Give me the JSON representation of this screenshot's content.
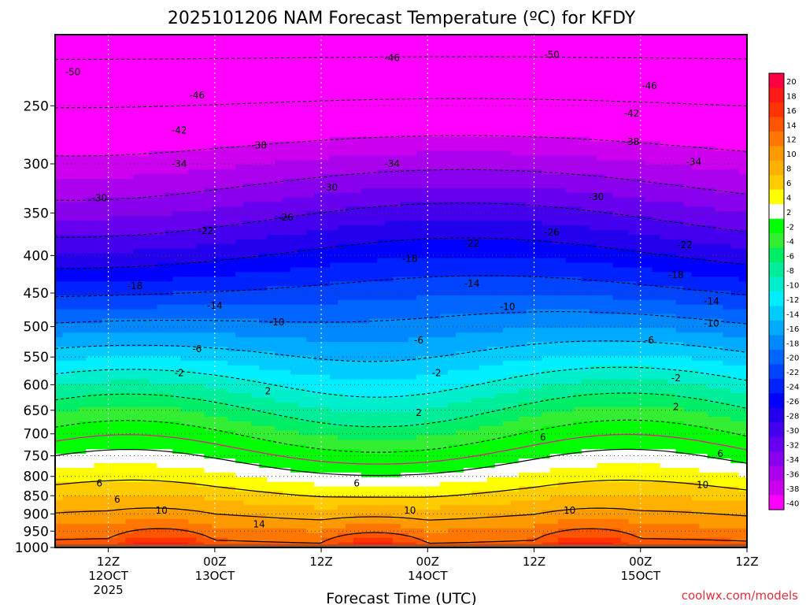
{
  "chart_data": {
    "type": "heatmap",
    "title": "2025101206 NAM Forecast Temperature (ºC) for KFDY",
    "xlabel": "Forecast Time (UTC)",
    "ylabel": "",
    "y_scale": "pressure (hPa), inverted",
    "ylim": [
      1000,
      200
    ],
    "grid": true,
    "credit": "coolwx.com/models",
    "y_ticks": [
      {
        "value": 250,
        "label": "250"
      },
      {
        "value": 300,
        "label": "300"
      },
      {
        "value": 350,
        "label": "350"
      },
      {
        "value": 400,
        "label": "400"
      },
      {
        "value": 450,
        "label": "450"
      },
      {
        "value": 500,
        "label": "500"
      },
      {
        "value": 550,
        "label": "550"
      },
      {
        "value": 600,
        "label": "600"
      },
      {
        "value": 650,
        "label": "650"
      },
      {
        "value": 700,
        "label": "700"
      },
      {
        "value": 750,
        "label": "750"
      },
      {
        "value": 800,
        "label": "800"
      },
      {
        "value": 850,
        "label": "850"
      },
      {
        "value": 900,
        "label": "900"
      },
      {
        "value": 950,
        "label": "950"
      },
      {
        "value": 1000,
        "label": "1000"
      }
    ],
    "x_range_hours": [
      6,
      84
    ],
    "x_ticks": [
      {
        "hour": 12,
        "lines": [
          "12Z",
          "12OCT",
          "2025"
        ]
      },
      {
        "hour": 24,
        "lines": [
          "00Z",
          "13OCT"
        ]
      },
      {
        "hour": 36,
        "lines": [
          "12Z"
        ]
      },
      {
        "hour": 48,
        "lines": [
          "00Z",
          "14OCT"
        ]
      },
      {
        "hour": 60,
        "lines": [
          "12Z"
        ]
      },
      {
        "hour": 72,
        "lines": [
          "00Z",
          "15OCT"
        ]
      },
      {
        "hour": 84,
        "lines": [
          "12Z"
        ]
      }
    ],
    "colorbar": {
      "labels": [
        "20",
        "18",
        "16",
        "14",
        "12",
        "10",
        "8",
        "6",
        "4",
        "2",
        "-2",
        "-4",
        "-6",
        "-8",
        "-10",
        "-12",
        "-14",
        "-16",
        "-18",
        "-20",
        "-22",
        "-24",
        "-26",
        "-28",
        "-30",
        "-32",
        "-34",
        "-36",
        "-38",
        "-40"
      ],
      "colors": [
        "#ff0040",
        "#ff1a1a",
        "#ff3300",
        "#ff5500",
        "#ff7700",
        "#ff9900",
        "#ffb000",
        "#ffcc00",
        "#ffff00",
        "#ffffff",
        "#00ff00",
        "#33ee33",
        "#00ee66",
        "#00ee99",
        "#00eecc",
        "#00eeff",
        "#00ccff",
        "#00aaff",
        "#0088ff",
        "#0066ff",
        "#0044ff",
        "#0022ff",
        "#0000ff",
        "#2200ee",
        "#4400ee",
        "#6600ee",
        "#8800ee",
        "#aa00ee",
        "#cc00ee",
        "#ff00ff"
      ]
    },
    "ground_color": "#a0522d",
    "surface_temp_c": [
      {
        "hour": 6,
        "t": 12
      },
      {
        "hour": 12,
        "t": 10
      },
      {
        "hour": 18,
        "t": 16
      },
      {
        "hour": 21,
        "t": 19
      },
      {
        "hour": 24,
        "t": 15
      },
      {
        "hour": 30,
        "t": 12
      },
      {
        "hour": 36,
        "t": 12
      },
      {
        "hour": 42,
        "t": 17
      },
      {
        "hour": 45,
        "t": 19
      },
      {
        "hour": 48,
        "t": 16
      },
      {
        "hour": 54,
        "t": 13
      },
      {
        "hour": 60,
        "t": 12
      },
      {
        "hour": 66,
        "t": 17
      },
      {
        "hour": 69,
        "t": 19
      },
      {
        "hour": 72,
        "t": 16
      },
      {
        "hour": 78,
        "t": 14
      },
      {
        "hour": 84,
        "t": 13
      }
    ],
    "contour_labels": [
      {
        "text": "-50",
        "hour": 8,
        "p": 225
      },
      {
        "text": "-46",
        "hour": 22,
        "p": 242
      },
      {
        "text": "-46",
        "hour": 44,
        "p": 215
      },
      {
        "text": "-50",
        "hour": 62,
        "p": 213
      },
      {
        "text": "-46",
        "hour": 73,
        "p": 235
      },
      {
        "text": "-42",
        "hour": 20,
        "p": 270
      },
      {
        "text": "-42",
        "hour": 71,
        "p": 256
      },
      {
        "text": "-38",
        "hour": 29,
        "p": 283
      },
      {
        "text": "-38",
        "hour": 71,
        "p": 280
      },
      {
        "text": "-34",
        "hour": 20,
        "p": 300
      },
      {
        "text": "-34",
        "hour": 44,
        "p": 300
      },
      {
        "text": "-34",
        "hour": 78,
        "p": 298
      },
      {
        "text": "-30",
        "hour": 11,
        "p": 334
      },
      {
        "text": "-30",
        "hour": 37,
        "p": 323
      },
      {
        "text": "-30",
        "hour": 67,
        "p": 333
      },
      {
        "text": "-26",
        "hour": 32,
        "p": 355
      },
      {
        "text": "-26",
        "hour": 62,
        "p": 372
      },
      {
        "text": "-22",
        "hour": 23,
        "p": 370
      },
      {
        "text": "-22",
        "hour": 53,
        "p": 385
      },
      {
        "text": "-22",
        "hour": 77,
        "p": 387
      },
      {
        "text": "-18",
        "hour": 15,
        "p": 440
      },
      {
        "text": "-18",
        "hour": 46,
        "p": 404
      },
      {
        "text": "-18",
        "hour": 76,
        "p": 425
      },
      {
        "text": "-14",
        "hour": 24,
        "p": 468
      },
      {
        "text": "-14",
        "hour": 53,
        "p": 437
      },
      {
        "text": "-14",
        "hour": 80,
        "p": 462
      },
      {
        "text": "-10",
        "hour": 31,
        "p": 493
      },
      {
        "text": "-10",
        "hour": 57,
        "p": 470
      },
      {
        "text": "-10",
        "hour": 80,
        "p": 495
      },
      {
        "text": "-6",
        "hour": 22,
        "p": 536
      },
      {
        "text": "-6",
        "hour": 47,
        "p": 522
      },
      {
        "text": "-6",
        "hour": 73,
        "p": 522
      },
      {
        "text": "-2",
        "hour": 20,
        "p": 578
      },
      {
        "text": "-2",
        "hour": 49,
        "p": 578
      },
      {
        "text": "-2",
        "hour": 76,
        "p": 588
      },
      {
        "text": "2",
        "hour": 30,
        "p": 612
      },
      {
        "text": "2",
        "hour": 47,
        "p": 655
      },
      {
        "text": "2",
        "hour": 76,
        "p": 643
      },
      {
        "text": "6",
        "hour": 61,
        "p": 707
      },
      {
        "text": "6",
        "hour": 11,
        "p": 818
      },
      {
        "text": "6",
        "hour": 13,
        "p": 860
      },
      {
        "text": "6",
        "hour": 40,
        "p": 818
      },
      {
        "text": "6",
        "hour": 81,
        "p": 745
      },
      {
        "text": "10",
        "hour": 18,
        "p": 890
      },
      {
        "text": "10",
        "hour": 46,
        "p": 890
      },
      {
        "text": "10",
        "hour": 64,
        "p": 890
      },
      {
        "text": "10",
        "hour": 79,
        "p": 822
      },
      {
        "text": "14",
        "hour": 29,
        "p": 930
      }
    ]
  }
}
